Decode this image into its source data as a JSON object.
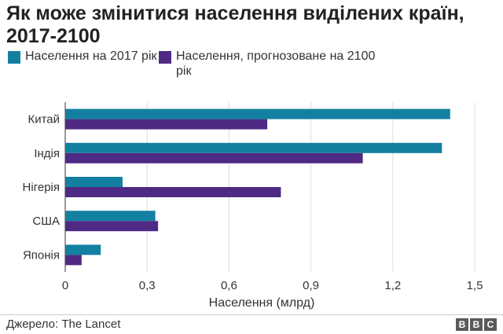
{
  "chart_data": {
    "type": "bar",
    "orientation": "horizontal",
    "title": "Як може змінитися населення виділених країн, 2017-2100",
    "xlabel": "Населення (млрд)",
    "ylabel": "",
    "categories": [
      "Китай",
      "Індія",
      "Нігерія",
      "США",
      "Японія"
    ],
    "series": [
      {
        "name": "Населення на 2017 рік",
        "color": "#1380a1",
        "values": [
          1.41,
          1.38,
          0.21,
          0.33,
          0.13
        ]
      },
      {
        "name": "Населення, прогнозоване на 2100 рік",
        "color": "#4e2a84",
        "values": [
          0.74,
          1.09,
          0.79,
          0.34,
          0.06
        ]
      }
    ],
    "xlim": [
      0,
      1.5
    ],
    "xticks": [
      0,
      0.3,
      0.6,
      0.9,
      1.2,
      1.5
    ],
    "xtick_labels": [
      "0",
      "0,3",
      "0,6",
      "0,9",
      "1,2",
      "1,5"
    ],
    "grid": true,
    "legend": "top-left"
  },
  "footer": {
    "source": "Джерело: The Lancet",
    "logo": [
      "B",
      "B",
      "C"
    ]
  }
}
